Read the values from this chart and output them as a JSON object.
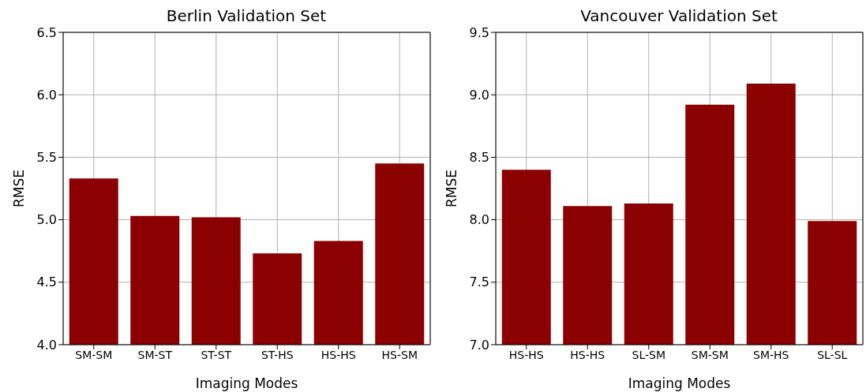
{
  "chart_data": [
    {
      "type": "bar",
      "title": "Berlin Validation Set",
      "xlabel": "Imaging Modes",
      "ylabel": "RMSE",
      "categories": [
        "SM-SM",
        "SM-ST",
        "ST-ST",
        "ST-HS",
        "HS-HS",
        "HS-SM"
      ],
      "values": [
        5.33,
        5.03,
        5.02,
        4.73,
        4.83,
        5.45
      ],
      "color": "#8b0000",
      "ylim": [
        4.0,
        6.5
      ],
      "yticks": [
        {
          "value": 4.0,
          "label": "4.0"
        },
        {
          "value": 4.5,
          "label": "4.5"
        },
        {
          "value": 5.0,
          "label": "5.0"
        },
        {
          "value": 5.5,
          "label": "5.5"
        },
        {
          "value": 6.0,
          "label": "6.0"
        },
        {
          "value": 6.5,
          "label": "6.5"
        }
      ],
      "grid": true
    },
    {
      "type": "bar",
      "title": "Vancouver Validation Set",
      "xlabel": "Imaging Modes",
      "ylabel": "RMSE",
      "categories": [
        "HS-HS",
        "HS-HS",
        "SL-SM",
        "SM-SM",
        "SM-HS",
        "SL-SL"
      ],
      "values": [
        8.4,
        8.11,
        8.13,
        8.92,
        9.09,
        7.99
      ],
      "color": "#8b0000",
      "ylim": [
        7.0,
        9.5
      ],
      "yticks": [
        {
          "value": 7.0,
          "label": "7.0"
        },
        {
          "value": 7.5,
          "label": "7.5"
        },
        {
          "value": 8.0,
          "label": "8.0"
        },
        {
          "value": 8.5,
          "label": "8.5"
        },
        {
          "value": 9.0,
          "label": "9.0"
        },
        {
          "value": 9.5,
          "label": "9.5"
        }
      ],
      "grid": true
    }
  ]
}
